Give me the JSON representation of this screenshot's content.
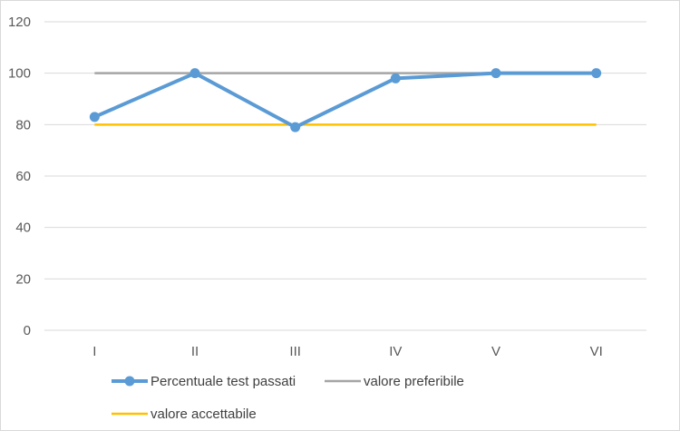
{
  "chart_data": {
    "type": "line",
    "categories": [
      "I",
      "II",
      "III",
      "IV",
      "V",
      "VI"
    ],
    "series": [
      {
        "name": "Percentuale test passati",
        "values": [
          83,
          100,
          79,
          98,
          100,
          100
        ],
        "color": "#5b9bd5",
        "markers": true
      },
      {
        "name": "valore preferibile",
        "values": [
          100,
          100,
          100,
          100,
          100,
          100
        ],
        "color": "#a5a5a5",
        "markers": false
      },
      {
        "name": "valore accettabile",
        "values": [
          80,
          80,
          80,
          80,
          80,
          80
        ],
        "color": "#ffc000",
        "markers": false
      }
    ],
    "ylim": [
      0,
      120
    ],
    "yticks": [
      "0",
      "20",
      "40",
      "60",
      "80",
      "100",
      "120"
    ],
    "grid": true,
    "legend_position": "bottom"
  }
}
